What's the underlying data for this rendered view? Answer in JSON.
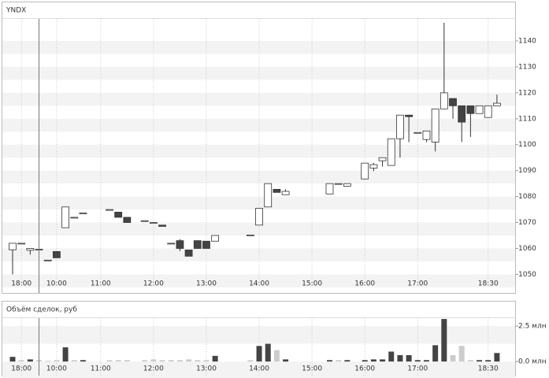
{
  "chart_data": [
    {
      "type": "candlestick",
      "title": "YNDX",
      "categories": [
        null,
        "18:00",
        null,
        null,
        null,
        "10:00",
        null,
        null,
        null,
        null,
        "11:00",
        null,
        null,
        null,
        null,
        null,
        "12:00",
        null,
        null,
        null,
        null,
        null,
        "13:00",
        null,
        null,
        null,
        null,
        null,
        "14:00",
        null,
        null,
        null,
        null,
        null,
        "15:00",
        null,
        null,
        null,
        null,
        null,
        "16:00",
        null,
        null,
        null,
        null,
        null,
        "17:00",
        null,
        null,
        null,
        null,
        null,
        null,
        null,
        "18:30",
        null
      ],
      "open": [
        1059.5,
        1062,
        1059.3,
        1059.7,
        1055.5,
        1058.8,
        1068,
        1072,
        1073.7,
        null,
        null,
        1075,
        1074,
        1072,
        null,
        1070.7,
        1070,
        1069,
        1062,
        1063,
        1059.4,
        1063,
        1062.8,
        1062.8,
        null,
        null,
        null,
        1065.2,
        1069,
        1076,
        1082.8,
        1080.7,
        null,
        null,
        null,
        null,
        1081,
        1085,
        1084,
        null,
        1086.8,
        1091,
        1093.8,
        1092,
        1102.3,
        1111.4,
        1104.7,
        1102,
        1101,
        1113.8,
        1117.8,
        1115,
        1115,
        1112,
        1110.5,
        1115
      ],
      "high": [
        1062,
        1062,
        1060,
        1059.7,
        1055.5,
        1058.8,
        1076,
        1072,
        1073.7,
        null,
        null,
        1075,
        1074,
        1072,
        null,
        1070.7,
        1070,
        1069,
        1062,
        1063.6,
        1059.4,
        1063,
        1062.8,
        1065,
        null,
        null,
        null,
        1065.2,
        1075.5,
        1085,
        1082.8,
        1082.8,
        null,
        null,
        null,
        null,
        1085,
        1085,
        1085,
        null,
        1092.9,
        1093,
        1095,
        1102.3,
        1111.4,
        1111.4,
        1104.7,
        1105.3,
        1113.8,
        1147,
        1117.8,
        1115,
        1115,
        1115,
        1115,
        1119.3
      ],
      "low": [
        1050,
        1062,
        1057.6,
        1059.7,
        1055.5,
        1056.4,
        1068,
        1072,
        1073.7,
        null,
        null,
        1075,
        1072,
        1070,
        null,
        1070.7,
        1070,
        1068.5,
        1062,
        1059,
        1057,
        1060,
        1060,
        1062.8,
        null,
        null,
        null,
        1065.2,
        1069,
        1076,
        1081.6,
        1080.7,
        null,
        null,
        null,
        null,
        1081,
        1085,
        1084,
        null,
        1086.8,
        1089.8,
        1091.5,
        1092,
        1095,
        1101,
        1104.7,
        1101,
        1097.4,
        1113.8,
        1110,
        1101,
        1103,
        1112,
        1110.5,
        1115
      ],
      "close": [
        1062,
        1062,
        1060,
        1059.7,
        1055.5,
        1056.4,
        1076,
        1072,
        1073.7,
        null,
        null,
        1075,
        1072,
        1070,
        null,
        1070.7,
        1070,
        1068.5,
        1062,
        1060,
        1057,
        1060,
        1060,
        1065,
        null,
        null,
        null,
        1065.2,
        1075.5,
        1085,
        1081.6,
        1082,
        null,
        null,
        null,
        null,
        1085,
        1085,
        1085,
        null,
        1092.9,
        1092.3,
        1095,
        1102.3,
        1111.4,
        1110.8,
        1104.7,
        1105.3,
        1113.8,
        1120,
        1115,
        1108.7,
        1112,
        1115,
        1115,
        1116
      ],
      "up_color": "#ffffff",
      "down_color": "#444444",
      "ylim": [
        1048,
        1148.5
      ],
      "yticks": [
        1050,
        1060,
        1070,
        1080,
        1090,
        1100,
        1110,
        1120,
        1130,
        1140
      ],
      "grid": true
    },
    {
      "type": "bar",
      "title": "Объём сделок, руб",
      "categories": [
        null,
        "18:00",
        null,
        null,
        null,
        "10:00",
        null,
        null,
        null,
        null,
        "11:00",
        null,
        null,
        null,
        null,
        null,
        "12:00",
        null,
        null,
        null,
        null,
        null,
        "13:00",
        null,
        null,
        null,
        null,
        null,
        "14:00",
        null,
        null,
        null,
        null,
        null,
        "15:00",
        null,
        null,
        null,
        null,
        null,
        "16:00",
        null,
        null,
        null,
        null,
        null,
        "17:00",
        null,
        null,
        null,
        null,
        null,
        null,
        null,
        "18:30",
        null
      ],
      "values": [
        0.33,
        0.1,
        0.15,
        0.1,
        0.05,
        0.1,
        1.0,
        0.1,
        0.1,
        null,
        null,
        0.1,
        0.1,
        0.1,
        null,
        0.1,
        0.15,
        0.1,
        0.1,
        0.1,
        0.15,
        0.1,
        0.1,
        0.4,
        null,
        null,
        null,
        0.1,
        1.1,
        1.25,
        0.8,
        0.15,
        null,
        null,
        null,
        null,
        0.1,
        0.1,
        0.1,
        null,
        0.1,
        0.15,
        0.15,
        0.7,
        0.45,
        0.45,
        0.1,
        0.1,
        1.15,
        3.0,
        0.45,
        1.1,
        0.1,
        0.1,
        0.1,
        0.6
      ],
      "colors": [
        "#444444",
        "#cccccc",
        "#444444",
        "#cccccc",
        "#cccccc",
        "#cccccc",
        "#444444",
        "#cccccc",
        "#444444",
        null,
        null,
        "#cccccc",
        "#cccccc",
        "#cccccc",
        null,
        "#cccccc",
        "#cccccc",
        "#cccccc",
        "#cccccc",
        "#cccccc",
        "#cccccc",
        "#cccccc",
        "#cccccc",
        "#444444",
        null,
        null,
        null,
        "#cccccc",
        "#444444",
        "#444444",
        "#cccccc",
        "#444444",
        null,
        null,
        null,
        null,
        "#444444",
        "#cccccc",
        "#444444",
        null,
        "#444444",
        "#444444",
        "#444444",
        "#444444",
        "#444444",
        "#444444",
        "#444444",
        "#444444",
        "#444444",
        "#444444",
        "#cccccc",
        "#cccccc",
        "#cccccc",
        "#444444",
        "#444444",
        "#444444"
      ],
      "ylim": [
        -0.94,
        3.06
      ],
      "yticks": [
        {
          "value": 0,
          "label": "0.0 млн"
        },
        {
          "value": 2.5,
          "label": "2.5 млн"
        }
      ],
      "grid": true
    }
  ]
}
